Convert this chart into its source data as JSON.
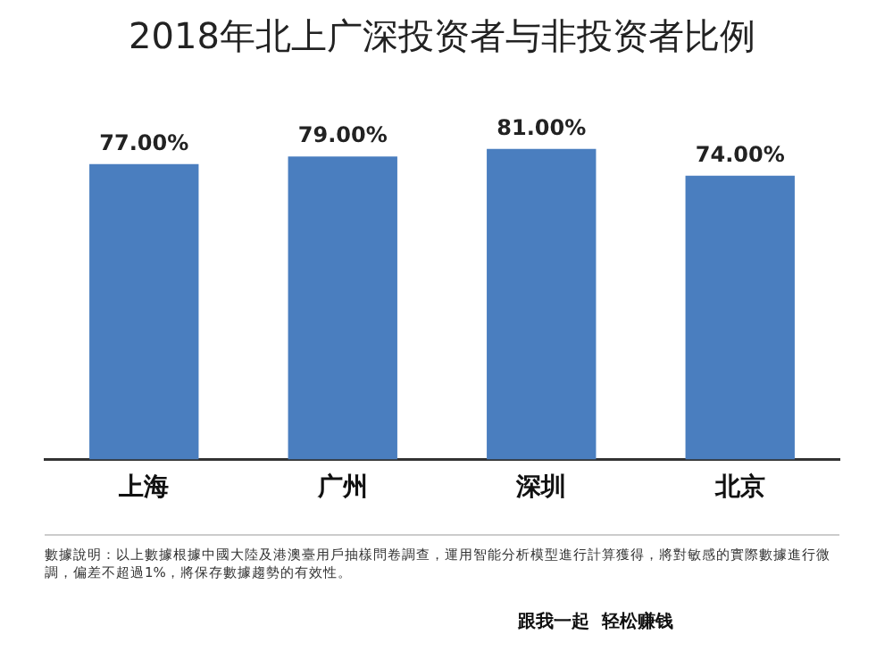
{
  "chart_data": {
    "type": "bar",
    "title": "2018年北上广深投资者与非投资者比例",
    "categories": [
      "上海",
      "广州",
      "深圳",
      "北京"
    ],
    "values": [
      77.0,
      79.0,
      81.0,
      74.0
    ],
    "value_labels": [
      "77.00%",
      "79.00%",
      "81.00%",
      "74.00%"
    ],
    "color": "#4a7ebf",
    "grid": false,
    "legend": false,
    "annotations": [
      "數據說明：以上數據根據中國大陸及港澳臺用戶抽樣問卷調查，運用智能分析模型進行計算獲得，將對敏感的實際數據進行微調，偏差不超過1%，將保存數據趨勢的有效性。",
      "跟我一起  轻松赚钱"
    ]
  }
}
